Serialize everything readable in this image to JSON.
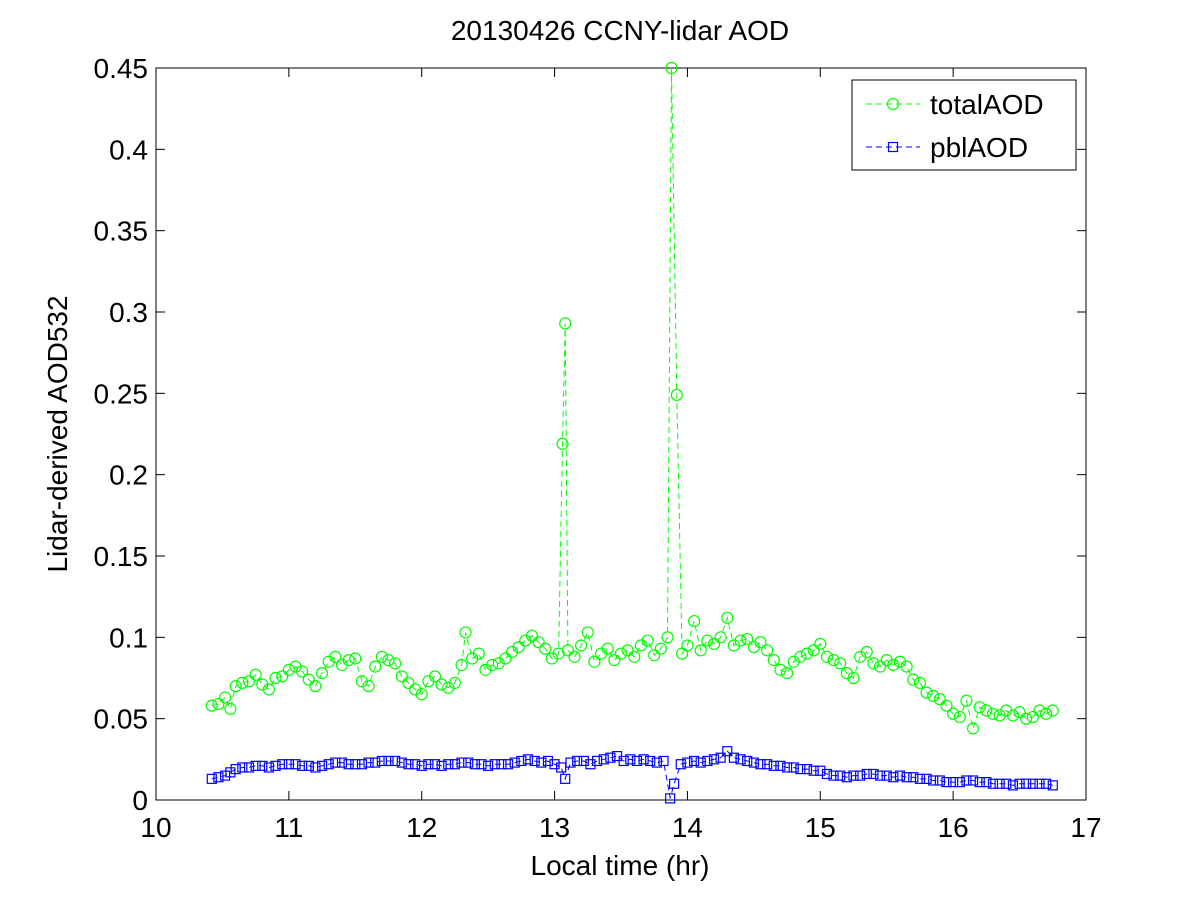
{
  "chart_data": {
    "type": "line",
    "title": "20130426 CCNY-lidar AOD",
    "xlabel": "Local time (hr)",
    "ylabel": "Lidar-derived AOD532",
    "xlim": [
      10,
      17
    ],
    "ylim": [
      0,
      0.45
    ],
    "xticks": [
      10,
      11,
      12,
      13,
      14,
      15,
      16,
      17
    ],
    "xtick_labels": [
      "10",
      "11",
      "12",
      "13",
      "14",
      "15",
      "16",
      "17"
    ],
    "yticks": [
      0,
      0.05,
      0.1,
      0.15,
      0.2,
      0.25,
      0.3,
      0.35,
      0.4,
      0.45
    ],
    "ytick_labels": [
      "0",
      "0.05",
      "0.1",
      "0.15",
      "0.2",
      "0.25",
      "0.3",
      "0.35",
      "0.4",
      "0.45"
    ],
    "grid": false,
    "legend_position": "top-right",
    "series": [
      {
        "name": "totalAOD",
        "color": "#00ff00",
        "marker": "circle",
        "linestyle": "dashed",
        "points": [
          [
            10.42,
            0.058
          ],
          [
            10.47,
            0.059
          ],
          [
            10.52,
            0.063
          ],
          [
            10.56,
            0.056
          ],
          [
            10.6,
            0.07
          ],
          [
            10.65,
            0.072
          ],
          [
            10.7,
            0.073
          ],
          [
            10.75,
            0.077
          ],
          [
            10.8,
            0.071
          ],
          [
            10.85,
            0.068
          ],
          [
            10.9,
            0.075
          ],
          [
            10.95,
            0.076
          ],
          [
            11.0,
            0.08
          ],
          [
            11.05,
            0.082
          ],
          [
            11.1,
            0.079
          ],
          [
            11.15,
            0.074
          ],
          [
            11.2,
            0.07
          ],
          [
            11.25,
            0.078
          ],
          [
            11.3,
            0.085
          ],
          [
            11.35,
            0.088
          ],
          [
            11.4,
            0.083
          ],
          [
            11.45,
            0.086
          ],
          [
            11.5,
            0.087
          ],
          [
            11.55,
            0.073
          ],
          [
            11.6,
            0.07
          ],
          [
            11.65,
            0.082
          ],
          [
            11.7,
            0.088
          ],
          [
            11.75,
            0.086
          ],
          [
            11.8,
            0.084
          ],
          [
            11.85,
            0.076
          ],
          [
            11.9,
            0.072
          ],
          [
            11.95,
            0.068
          ],
          [
            12.0,
            0.065
          ],
          [
            12.05,
            0.073
          ],
          [
            12.1,
            0.076
          ],
          [
            12.15,
            0.071
          ],
          [
            12.2,
            0.069
          ],
          [
            12.25,
            0.072
          ],
          [
            12.3,
            0.083
          ],
          [
            12.33,
            0.103
          ],
          [
            12.38,
            0.087
          ],
          [
            12.43,
            0.09
          ],
          [
            12.48,
            0.08
          ],
          [
            12.53,
            0.083
          ],
          [
            12.58,
            0.084
          ],
          [
            12.63,
            0.087
          ],
          [
            12.68,
            0.091
          ],
          [
            12.73,
            0.094
          ],
          [
            12.78,
            0.098
          ],
          [
            12.83,
            0.101
          ],
          [
            12.88,
            0.097
          ],
          [
            12.93,
            0.093
          ],
          [
            12.98,
            0.087
          ],
          [
            13.03,
            0.09
          ],
          [
            13.06,
            0.219
          ],
          [
            13.08,
            0.293
          ],
          [
            13.1,
            0.092
          ],
          [
            13.15,
            0.088
          ],
          [
            13.2,
            0.095
          ],
          [
            13.25,
            0.103
          ],
          [
            13.3,
            0.085
          ],
          [
            13.35,
            0.09
          ],
          [
            13.4,
            0.093
          ],
          [
            13.45,
            0.086
          ],
          [
            13.5,
            0.09
          ],
          [
            13.55,
            0.092
          ],
          [
            13.6,
            0.088
          ],
          [
            13.65,
            0.095
          ],
          [
            13.7,
            0.098
          ],
          [
            13.75,
            0.089
          ],
          [
            13.8,
            0.093
          ],
          [
            13.85,
            0.1
          ],
          [
            13.88,
            0.45
          ],
          [
            13.92,
            0.249
          ],
          [
            13.96,
            0.09
          ],
          [
            14.0,
            0.095
          ],
          [
            14.05,
            0.11
          ],
          [
            14.1,
            0.092
          ],
          [
            14.15,
            0.098
          ],
          [
            14.2,
            0.096
          ],
          [
            14.25,
            0.1
          ],
          [
            14.3,
            0.112
          ],
          [
            14.35,
            0.095
          ],
          [
            14.4,
            0.098
          ],
          [
            14.45,
            0.099
          ],
          [
            14.5,
            0.094
          ],
          [
            14.55,
            0.097
          ],
          [
            14.6,
            0.092
          ],
          [
            14.65,
            0.086
          ],
          [
            14.7,
            0.08
          ],
          [
            14.75,
            0.078
          ],
          [
            14.8,
            0.085
          ],
          [
            14.85,
            0.088
          ],
          [
            14.9,
            0.09
          ],
          [
            14.95,
            0.092
          ],
          [
            15.0,
            0.096
          ],
          [
            15.05,
            0.088
          ],
          [
            15.1,
            0.086
          ],
          [
            15.15,
            0.084
          ],
          [
            15.2,
            0.078
          ],
          [
            15.25,
            0.075
          ],
          [
            15.3,
            0.088
          ],
          [
            15.35,
            0.091
          ],
          [
            15.4,
            0.084
          ],
          [
            15.45,
            0.082
          ],
          [
            15.5,
            0.086
          ],
          [
            15.55,
            0.083
          ],
          [
            15.6,
            0.085
          ],
          [
            15.65,
            0.082
          ],
          [
            15.7,
            0.074
          ],
          [
            15.75,
            0.072
          ],
          [
            15.8,
            0.066
          ],
          [
            15.85,
            0.064
          ],
          [
            15.9,
            0.062
          ],
          [
            15.95,
            0.058
          ],
          [
            16.0,
            0.053
          ],
          [
            16.05,
            0.051
          ],
          [
            16.1,
            0.061
          ],
          [
            16.15,
            0.044
          ],
          [
            16.2,
            0.057
          ],
          [
            16.25,
            0.055
          ],
          [
            16.3,
            0.053
          ],
          [
            16.35,
            0.052
          ],
          [
            16.4,
            0.055
          ],
          [
            16.45,
            0.052
          ],
          [
            16.5,
            0.054
          ],
          [
            16.55,
            0.05
          ],
          [
            16.6,
            0.051
          ],
          [
            16.65,
            0.055
          ],
          [
            16.7,
            0.053
          ],
          [
            16.75,
            0.055
          ]
        ]
      },
      {
        "name": "pblAOD",
        "color": "#0000ff",
        "marker": "square",
        "linestyle": "dashed",
        "points": [
          [
            10.42,
            0.013
          ],
          [
            10.47,
            0.014
          ],
          [
            10.52,
            0.015
          ],
          [
            10.56,
            0.017
          ],
          [
            10.6,
            0.019
          ],
          [
            10.65,
            0.02
          ],
          [
            10.7,
            0.02
          ],
          [
            10.75,
            0.021
          ],
          [
            10.8,
            0.021
          ],
          [
            10.85,
            0.02
          ],
          [
            10.9,
            0.021
          ],
          [
            10.95,
            0.022
          ],
          [
            11.0,
            0.022
          ],
          [
            11.05,
            0.022
          ],
          [
            11.1,
            0.021
          ],
          [
            11.15,
            0.021
          ],
          [
            11.2,
            0.02
          ],
          [
            11.25,
            0.021
          ],
          [
            11.3,
            0.022
          ],
          [
            11.35,
            0.023
          ],
          [
            11.4,
            0.023
          ],
          [
            11.45,
            0.022
          ],
          [
            11.5,
            0.022
          ],
          [
            11.55,
            0.022
          ],
          [
            11.6,
            0.023
          ],
          [
            11.65,
            0.023
          ],
          [
            11.7,
            0.024
          ],
          [
            11.75,
            0.024
          ],
          [
            11.8,
            0.024
          ],
          [
            11.85,
            0.023
          ],
          [
            11.9,
            0.022
          ],
          [
            11.95,
            0.022
          ],
          [
            12.0,
            0.021
          ],
          [
            12.05,
            0.022
          ],
          [
            12.1,
            0.022
          ],
          [
            12.15,
            0.021
          ],
          [
            12.2,
            0.022
          ],
          [
            12.25,
            0.022
          ],
          [
            12.3,
            0.023
          ],
          [
            12.35,
            0.023
          ],
          [
            12.4,
            0.022
          ],
          [
            12.45,
            0.022
          ],
          [
            12.5,
            0.021
          ],
          [
            12.55,
            0.022
          ],
          [
            12.6,
            0.022
          ],
          [
            12.65,
            0.022
          ],
          [
            12.7,
            0.023
          ],
          [
            12.75,
            0.024
          ],
          [
            12.8,
            0.025
          ],
          [
            12.85,
            0.024
          ],
          [
            12.9,
            0.023
          ],
          [
            12.95,
            0.024
          ],
          [
            13.0,
            0.022
          ],
          [
            13.05,
            0.02
          ],
          [
            13.08,
            0.013
          ],
          [
            13.12,
            0.023
          ],
          [
            13.17,
            0.024
          ],
          [
            13.22,
            0.024
          ],
          [
            13.27,
            0.022
          ],
          [
            13.32,
            0.024
          ],
          [
            13.37,
            0.025
          ],
          [
            13.42,
            0.026
          ],
          [
            13.47,
            0.027
          ],
          [
            13.52,
            0.024
          ],
          [
            13.57,
            0.025
          ],
          [
            13.62,
            0.024
          ],
          [
            13.67,
            0.025
          ],
          [
            13.72,
            0.024
          ],
          [
            13.77,
            0.023
          ],
          [
            13.82,
            0.024
          ],
          [
            13.87,
            0.001
          ],
          [
            13.9,
            0.01
          ],
          [
            13.95,
            0.022
          ],
          [
            14.0,
            0.023
          ],
          [
            14.05,
            0.024
          ],
          [
            14.1,
            0.023
          ],
          [
            14.15,
            0.024
          ],
          [
            14.2,
            0.025
          ],
          [
            14.25,
            0.026
          ],
          [
            14.3,
            0.03
          ],
          [
            14.35,
            0.026
          ],
          [
            14.4,
            0.025
          ],
          [
            14.45,
            0.024
          ],
          [
            14.5,
            0.023
          ],
          [
            14.55,
            0.022
          ],
          [
            14.6,
            0.022
          ],
          [
            14.65,
            0.021
          ],
          [
            14.7,
            0.021
          ],
          [
            14.75,
            0.02
          ],
          [
            14.8,
            0.02
          ],
          [
            14.85,
            0.019
          ],
          [
            14.9,
            0.019
          ],
          [
            14.95,
            0.018
          ],
          [
            15.0,
            0.018
          ],
          [
            15.05,
            0.016
          ],
          [
            15.1,
            0.015
          ],
          [
            15.15,
            0.015
          ],
          [
            15.2,
            0.014
          ],
          [
            15.25,
            0.015
          ],
          [
            15.3,
            0.015
          ],
          [
            15.35,
            0.016
          ],
          [
            15.4,
            0.016
          ],
          [
            15.45,
            0.015
          ],
          [
            15.5,
            0.015
          ],
          [
            15.55,
            0.014
          ],
          [
            15.6,
            0.015
          ],
          [
            15.65,
            0.014
          ],
          [
            15.7,
            0.014
          ],
          [
            15.75,
            0.013
          ],
          [
            15.8,
            0.013
          ],
          [
            15.85,
            0.012
          ],
          [
            15.9,
            0.012
          ],
          [
            15.95,
            0.011
          ],
          [
            16.0,
            0.011
          ],
          [
            16.05,
            0.011
          ],
          [
            16.1,
            0.012
          ],
          [
            16.15,
            0.012
          ],
          [
            16.2,
            0.011
          ],
          [
            16.25,
            0.011
          ],
          [
            16.3,
            0.01
          ],
          [
            16.35,
            0.01
          ],
          [
            16.4,
            0.01
          ],
          [
            16.45,
            0.009
          ],
          [
            16.5,
            0.01
          ],
          [
            16.55,
            0.01
          ],
          [
            16.6,
            0.01
          ],
          [
            16.65,
            0.01
          ],
          [
            16.7,
            0.01
          ],
          [
            16.75,
            0.009
          ]
        ]
      }
    ]
  }
}
